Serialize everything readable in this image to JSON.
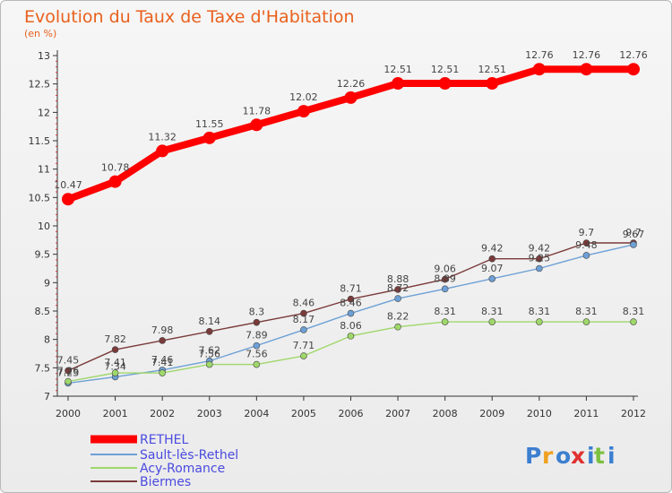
{
  "chart_data": {
    "type": "line",
    "title": "Evolution du Taux de Taxe d'Habitation",
    "subtitle": "(en %)",
    "x": [
      "2000",
      "2001",
      "2002",
      "2003",
      "2004",
      "2005",
      "2006",
      "2007",
      "2008",
      "2009",
      "2010",
      "2011",
      "2012"
    ],
    "y_ticks": [
      "7",
      "7.5",
      "8",
      "8.5",
      "9",
      "9.5",
      "10",
      "10.5",
      "11",
      "11.5",
      "12",
      "12.5",
      "13"
    ],
    "ylim": [
      7,
      13
    ],
    "grid": false,
    "legend_position": "bottom-left",
    "series": [
      {
        "name": "RETHEL",
        "color": "#ff0000",
        "values": [
          10.47,
          10.78,
          11.32,
          11.55,
          11.78,
          12.02,
          12.26,
          12.51,
          12.51,
          12.51,
          12.76,
          12.76,
          12.76
        ],
        "labels": [
          "10.47",
          "10.78",
          "11.32",
          "11.55",
          "11.78",
          "12.02",
          "12.26",
          "12.51",
          "12.51",
          "12.51",
          "12.76",
          "12.76",
          "12.76"
        ]
      },
      {
        "name": "Sault-lès-Rethel",
        "color": "#6da0d6",
        "values": [
          7.23,
          7.34,
          7.46,
          7.62,
          7.89,
          8.17,
          8.46,
          8.72,
          8.89,
          9.07,
          9.25,
          9.48,
          9.67
        ],
        "labels": [
          "7.23",
          "7.34",
          "7.46",
          "7.62",
          "7.89",
          "8.17",
          "8.46",
          "8.72",
          "8.89",
          "9.07",
          "9.25",
          "9.48",
          "9.67"
        ]
      },
      {
        "name": "Acy-Romance",
        "color": "#9fd86a",
        "values": [
          7.26,
          7.41,
          7.41,
          7.56,
          7.56,
          7.71,
          8.06,
          8.22,
          8.31,
          8.31,
          8.31,
          8.31,
          8.31
        ],
        "labels": [
          "7.26",
          "7.41",
          "7.41",
          "7.56",
          "7.56",
          "7.71",
          "8.06",
          "8.22",
          "8.31",
          "8.31",
          "8.31",
          "8.31",
          "8.31"
        ]
      },
      {
        "name": "Biermes",
        "color": "#7a3a3a",
        "values": [
          7.45,
          7.82,
          7.98,
          8.14,
          8.3,
          8.46,
          8.71,
          8.88,
          9.06,
          9.42,
          9.42,
          9.7,
          9.7
        ],
        "labels": [
          "7.45",
          "7.82",
          "7.98",
          "8.14",
          "8.3",
          "8.46",
          "8.71",
          "8.88",
          "9.06",
          "9.42",
          "9.42",
          "9.7",
          "9.7"
        ]
      }
    ]
  },
  "brand": {
    "p": "P",
    "r": "r",
    "o": "o",
    "x": "x",
    "i1": "i",
    "t": "t",
    "i2": "i"
  }
}
